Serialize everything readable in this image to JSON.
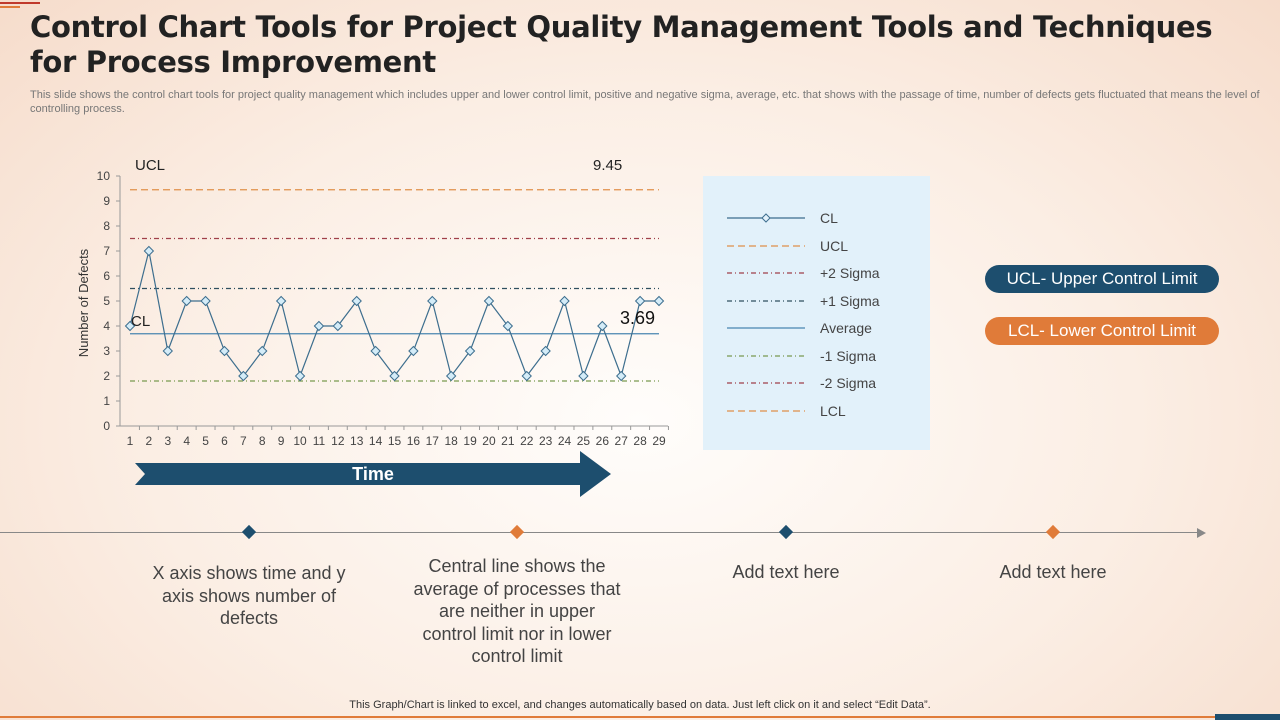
{
  "header": {
    "title": "Control Chart Tools for Project Quality Management Tools and Techniques for Process Improvement",
    "subtitle": "This slide shows the control chart tools for project quality management which includes upper and lower control limit, positive and negative sigma, average, etc. that shows with the passage of time, number of defects gets fluctuated that means the level of controlling process."
  },
  "chart_data": {
    "type": "line",
    "ylabel": "Number of Defects",
    "ylim": [
      0,
      10
    ],
    "yticks": [
      "0",
      "1",
      "2",
      "3",
      "4",
      "5",
      "6",
      "7",
      "8",
      "9",
      "10"
    ],
    "x": [
      1,
      2,
      3,
      4,
      5,
      6,
      7,
      8,
      9,
      10,
      11,
      12,
      13,
      14,
      15,
      16,
      17,
      18,
      19,
      20,
      21,
      22,
      23,
      24,
      25,
      26,
      27,
      28,
      29
    ],
    "series": [
      {
        "name": "CL",
        "values": [
          4,
          7,
          3,
          5,
          5,
          3,
          2,
          3,
          5,
          2,
          4,
          4,
          5,
          3,
          2,
          3,
          5,
          2,
          3,
          5,
          4,
          2,
          3,
          5,
          2,
          4,
          2,
          5,
          5
        ],
        "color": "#3d6e8e"
      }
    ],
    "reference_lines": [
      {
        "name": "UCL",
        "value": 9.45,
        "color": "#e0904a",
        "style": "dashed"
      },
      {
        "name": "+2 Sigma",
        "value": 7.5,
        "color": "#a0404a",
        "style": "dashdot"
      },
      {
        "name": "+1 Sigma",
        "value": 5.5,
        "color": "#2f4f5f",
        "style": "dashdot"
      },
      {
        "name": "Average",
        "value": 3.69,
        "color": "#4a86b0",
        "style": "solid"
      },
      {
        "name": "-1 Sigma",
        "value": 1.8,
        "color": "#7a9a50",
        "style": "dashdot"
      }
    ],
    "legend": {
      "placement": "right",
      "entries": [
        {
          "label": "CL",
          "color": "#3d6e8e",
          "style": "marker"
        },
        {
          "label": "UCL",
          "color": "#e0904a",
          "style": "dashed"
        },
        {
          "label": "+2 Sigma",
          "color": "#a0404a",
          "style": "dashdot"
        },
        {
          "label": "+1 Sigma",
          "color": "#2f4f5f",
          "style": "dashdot"
        },
        {
          "label": "Average",
          "color": "#4a86b0",
          "style": "solid"
        },
        {
          "label": "-1 Sigma",
          "color": "#7a9a50",
          "style": "dashdot"
        },
        {
          "label": "-2 Sigma",
          "color": "#a0404a",
          "style": "dashdot"
        },
        {
          "label": "LCL",
          "color": "#e0904a",
          "style": "dashed"
        }
      ]
    },
    "annotations": {
      "ucl_label": "UCL",
      "ucl_value": "9.45",
      "cl_label": "CL",
      "average_value": "3.69"
    },
    "grid": false
  },
  "time_arrow": {
    "label": "Time",
    "color": "#1d4e6e"
  },
  "pills": [
    {
      "label": "UCL- Upper Control Limit",
      "color": "#1d4e6e"
    },
    {
      "label": "LCL- Lower Control Limit",
      "color": "#e07b39"
    }
  ],
  "timeline": [
    {
      "text": "X axis shows time and y axis shows number of defects",
      "color": "#1d4e6e"
    },
    {
      "text": "Central line shows the average of processes that are neither in upper control limit nor in lower control limit",
      "color": "#e07b39"
    },
    {
      "text": "Add text here",
      "color": "#1d4e6e"
    },
    {
      "text": "Add text here",
      "color": "#e07b39"
    }
  ],
  "footer": "This Graph/Chart is linked to excel,  and changes automatically based on data. Just left click on it and select “Edit Data”."
}
